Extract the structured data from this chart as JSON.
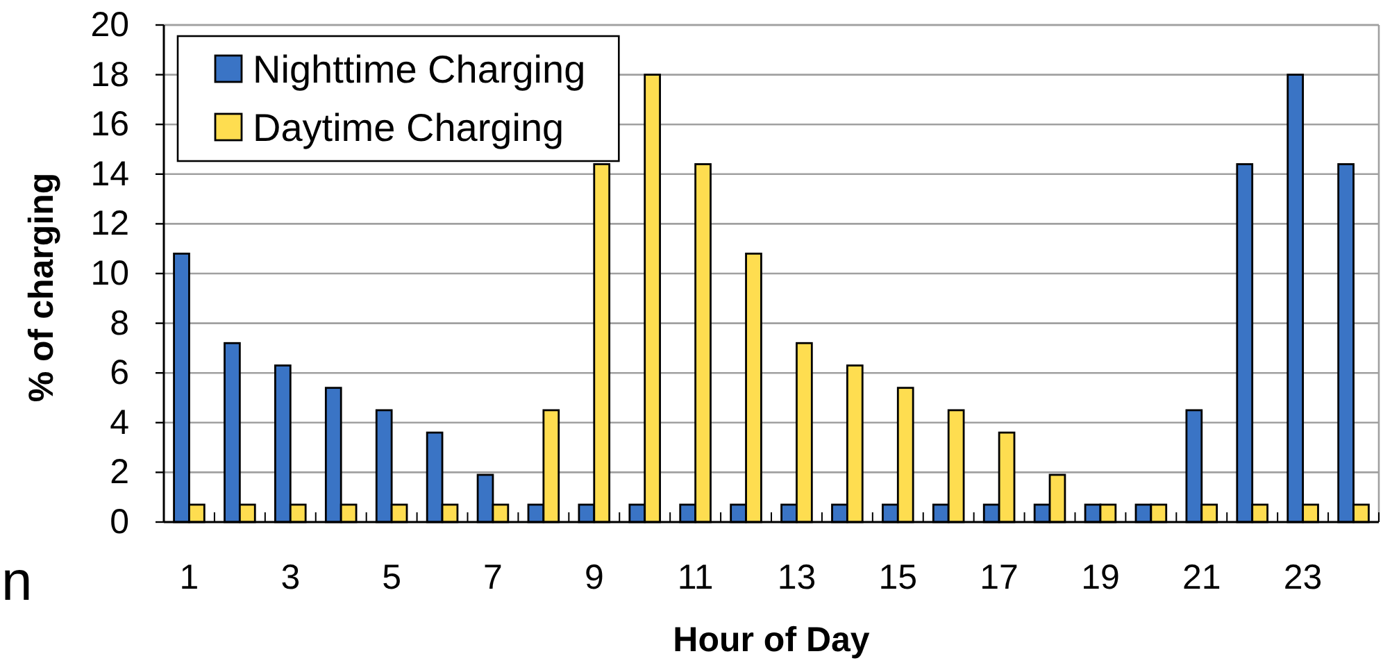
{
  "chart_data": {
    "type": "bar",
    "xlabel": "Hour of Day",
    "ylabel": "% of charging",
    "x": [
      1,
      2,
      3,
      4,
      5,
      6,
      7,
      8,
      9,
      10,
      11,
      12,
      13,
      14,
      15,
      16,
      17,
      18,
      19,
      20,
      21,
      22,
      23,
      24
    ],
    "series": [
      {
        "name": "Nighttime Charging",
        "color": "#3a74c5",
        "values": [
          10.8,
          7.2,
          6.3,
          5.4,
          4.5,
          3.6,
          1.9,
          0.7,
          0.7,
          0.7,
          0.7,
          0.7,
          0.7,
          0.7,
          0.7,
          0.7,
          0.7,
          0.7,
          0.7,
          0.7,
          4.5,
          14.4,
          18,
          14.4
        ]
      },
      {
        "name": "Daytime Charging",
        "color": "#fedd50",
        "values": [
          0.7,
          0.7,
          0.7,
          0.7,
          0.7,
          0.7,
          0.7,
          4.5,
          14.4,
          18,
          14.4,
          10.8,
          7.2,
          6.3,
          5.4,
          4.5,
          3.6,
          1.9,
          0.7,
          0.7,
          0.7,
          0.7,
          0.7,
          0.7
        ]
      }
    ],
    "xlim": [
      0.5,
      24.5
    ],
    "xticks": [
      {
        "value": 0.5,
        "label": null
      },
      1,
      {
        "value": 1.5,
        "label": null
      },
      {
        "value": 2.5,
        "label": null
      },
      3,
      {
        "value": 3.5,
        "label": null
      },
      {
        "value": 4.5,
        "label": null
      },
      5,
      {
        "value": 5.5,
        "label": null
      },
      {
        "value": 6.5,
        "label": null
      },
      7,
      {
        "value": 7.5,
        "label": null
      },
      {
        "value": 8.5,
        "label": null
      },
      9,
      {
        "value": 9.5,
        "label": null
      },
      {
        "value": 10.5,
        "label": null
      },
      11,
      {
        "value": 11.5,
        "label": null
      },
      {
        "value": 12.5,
        "label": null
      },
      13,
      {
        "value": 13.5,
        "label": null
      },
      {
        "value": 14.5,
        "label": null
      },
      15,
      {
        "value": 15.5,
        "label": null
      },
      {
        "value": 16.5,
        "label": null
      },
      17,
      {
        "value": 17.5,
        "label": null
      },
      {
        "value": 18.5,
        "label": null
      },
      19,
      {
        "value": 19.5,
        "label": null
      },
      {
        "value": 20.5,
        "label": null
      },
      21,
      {
        "value": 21.5,
        "label": null
      },
      {
        "value": 22.5,
        "label": null
      },
      23,
      {
        "value": 23.5,
        "label": null
      },
      {
        "value": 24.5,
        "label": null
      }
    ],
    "ylim": [
      0,
      20
    ],
    "yticks": [
      0,
      2,
      4,
      6,
      8,
      10,
      12,
      14,
      16,
      18,
      20
    ],
    "grid": "y",
    "legend": "top left",
    "annotations": [
      "n"
    ]
  }
}
